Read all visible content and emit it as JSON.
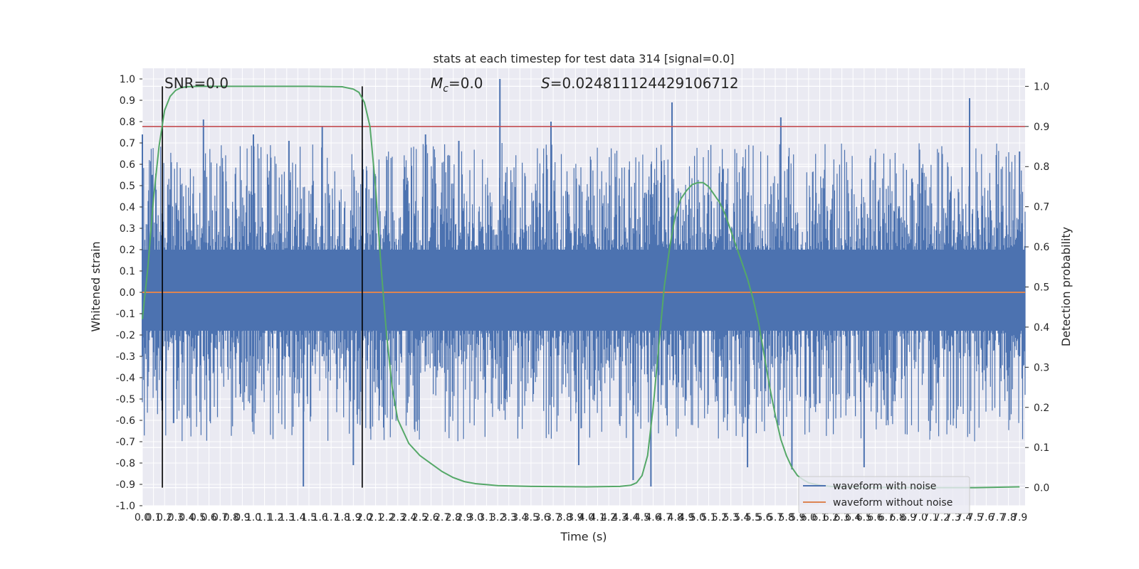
{
  "chart_data": {
    "type": "line",
    "title": "stats at each timestep for test data 314 [signal=0.0]",
    "xlabel": "Time (s)",
    "ylabel": "Whitened strain",
    "y2label": "Detection probability",
    "xlim": [
      0.0,
      7.95
    ],
    "ylim": [
      -1.0,
      1.05
    ],
    "y2lim": [
      -0.045,
      1.045
    ],
    "xticks": [
      0.0,
      0.1,
      0.2,
      0.3,
      0.4,
      0.5,
      0.6,
      0.7,
      0.8,
      0.9,
      1.0,
      1.1,
      1.2,
      1.3,
      1.4,
      1.5,
      1.6,
      1.7,
      1.8,
      1.9,
      2.0,
      2.1,
      2.2,
      2.3,
      2.4,
      2.5,
      2.6,
      2.7,
      2.8,
      2.9,
      3.0,
      3.1,
      3.2,
      3.3,
      3.4,
      3.5,
      3.6,
      3.7,
      3.8,
      3.9,
      4.0,
      4.1,
      4.2,
      4.3,
      4.4,
      4.5,
      4.6,
      4.7,
      4.8,
      4.9,
      5.0,
      5.1,
      5.2,
      5.3,
      5.4,
      5.5,
      5.6,
      5.7,
      5.8,
      5.9,
      6.0,
      6.1,
      6.2,
      6.3,
      6.4,
      6.5,
      6.6,
      6.7,
      6.8,
      6.9,
      7.0,
      7.1,
      7.2,
      7.3,
      7.4,
      7.5,
      7.6,
      7.7,
      7.8,
      7.9
    ],
    "yticks": [
      -1.0,
      -0.9,
      -0.8,
      -0.7,
      -0.6,
      -0.5,
      -0.4,
      -0.3,
      -0.2,
      -0.1,
      0.0,
      0.1,
      0.2,
      0.3,
      0.4,
      0.5,
      0.6,
      0.7,
      0.8,
      0.9,
      1.0
    ],
    "y2ticks": [
      0.0,
      0.1,
      0.2,
      0.3,
      0.4,
      0.5,
      0.6,
      0.7,
      0.8,
      0.9,
      1.0
    ],
    "grid": true,
    "legend_position": "bottom-right",
    "annotations": {
      "snr": "SNR=0.0",
      "mc": "$M_c$=0.0",
      "s": "$S$=0.024811124429106712"
    },
    "vertical_lines_x": [
      0.18,
      1.98
    ],
    "threshold_y2": 0.9,
    "noise_envelope": {
      "typical_range": [
        -0.45,
        0.45
      ],
      "spikes": [
        {
          "x": 0.0,
          "y": 0.74
        },
        {
          "x": 0.55,
          "y": 0.81
        },
        {
          "x": 1.0,
          "y": 0.74
        },
        {
          "x": 1.32,
          "y": 0.71
        },
        {
          "x": 1.45,
          "y": -0.91
        },
        {
          "x": 1.62,
          "y": 0.78
        },
        {
          "x": 1.9,
          "y": -0.81
        },
        {
          "x": 2.55,
          "y": 0.74
        },
        {
          "x": 2.85,
          "y": 0.71
        },
        {
          "x": 3.22,
          "y": 1.0
        },
        {
          "x": 3.68,
          "y": 0.8
        },
        {
          "x": 3.93,
          "y": -0.81
        },
        {
          "x": 4.42,
          "y": -0.88
        },
        {
          "x": 4.58,
          "y": -0.91
        },
        {
          "x": 4.77,
          "y": 0.89
        },
        {
          "x": 5.45,
          "y": -0.82
        },
        {
          "x": 5.75,
          "y": 0.82
        },
        {
          "x": 5.85,
          "y": -0.83
        },
        {
          "x": 6.5,
          "y": -0.82
        },
        {
          "x": 7.45,
          "y": 0.91
        },
        {
          "x": 7.9,
          "y": 0.66
        }
      ]
    },
    "series": [
      {
        "name": "waveform with noise",
        "color": "#4C72B0",
        "axis": "left"
      },
      {
        "name": "waveform without noise",
        "color": "#DD8452",
        "axis": "left",
        "x": [
          0.0,
          7.95
        ],
        "y": [
          0.0,
          0.0
        ]
      },
      {
        "color": "#55A868",
        "axis": "right",
        "x": [
          0.0,
          0.05,
          0.1,
          0.15,
          0.2,
          0.25,
          0.3,
          0.35,
          0.4,
          0.5,
          0.6,
          1.0,
          1.5,
          1.8,
          1.9,
          1.95,
          2.0,
          2.05,
          2.1,
          2.15,
          2.2,
          2.25,
          2.3,
          2.4,
          2.5,
          2.6,
          2.7,
          2.8,
          2.9,
          3.0,
          3.2,
          3.5,
          4.0,
          4.3,
          4.4,
          4.45,
          4.5,
          4.55,
          4.6,
          4.65,
          4.7,
          4.75,
          4.8,
          4.85,
          4.9,
          4.95,
          5.0,
          5.05,
          5.1,
          5.15,
          5.2,
          5.25,
          5.3,
          5.35,
          5.4,
          5.45,
          5.5,
          5.55,
          5.6,
          5.65,
          5.7,
          5.75,
          5.8,
          5.85,
          5.9,
          5.95,
          6.0,
          6.1,
          6.2,
          6.5,
          7.0,
          7.5,
          7.9
        ],
        "y": [
          0.42,
          0.55,
          0.72,
          0.85,
          0.94,
          0.975,
          0.99,
          0.997,
          0.999,
          1.0,
          1.0,
          1.0,
          1.0,
          0.999,
          0.993,
          0.985,
          0.96,
          0.9,
          0.75,
          0.55,
          0.38,
          0.25,
          0.17,
          0.11,
          0.08,
          0.06,
          0.04,
          0.025,
          0.015,
          0.01,
          0.005,
          0.003,
          0.002,
          0.003,
          0.006,
          0.012,
          0.03,
          0.08,
          0.2,
          0.35,
          0.5,
          0.6,
          0.68,
          0.72,
          0.74,
          0.755,
          0.76,
          0.76,
          0.75,
          0.73,
          0.71,
          0.68,
          0.64,
          0.6,
          0.56,
          0.52,
          0.47,
          0.41,
          0.33,
          0.25,
          0.18,
          0.12,
          0.08,
          0.05,
          0.03,
          0.02,
          0.012,
          0.006,
          0.003,
          0.001,
          0.0,
          0.0,
          0.002
        ]
      }
    ]
  }
}
